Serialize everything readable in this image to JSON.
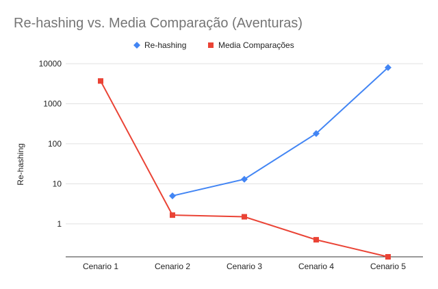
{
  "chart_data": {
    "type": "line",
    "title": "Re-hashing vs. Media Comparação (Aventuras)",
    "ylabel": "Re-hashing",
    "xlabel": "",
    "y_scale": "log",
    "ylim": [
      0.15,
      10000
    ],
    "y_ticks": [
      1,
      10,
      100,
      1000,
      10000
    ],
    "y_tick_labels": [
      "1",
      "10",
      "100",
      "1000",
      "10000"
    ],
    "categories": [
      "Cenario 1",
      "Cenario 2",
      "Cenario 3",
      "Cenario 4",
      "Cenario 5"
    ],
    "legend_position": "top",
    "grid": true,
    "series": [
      {
        "name": "Re-hashing",
        "color": "#4285f4",
        "marker": "diamond",
        "values": [
          null,
          5,
          13,
          180,
          8000
        ]
      },
      {
        "name": "Media Comparações",
        "color": "#ea4335",
        "marker": "square",
        "values": [
          3700,
          1.65,
          1.5,
          0.4,
          0.15
        ]
      }
    ]
  }
}
